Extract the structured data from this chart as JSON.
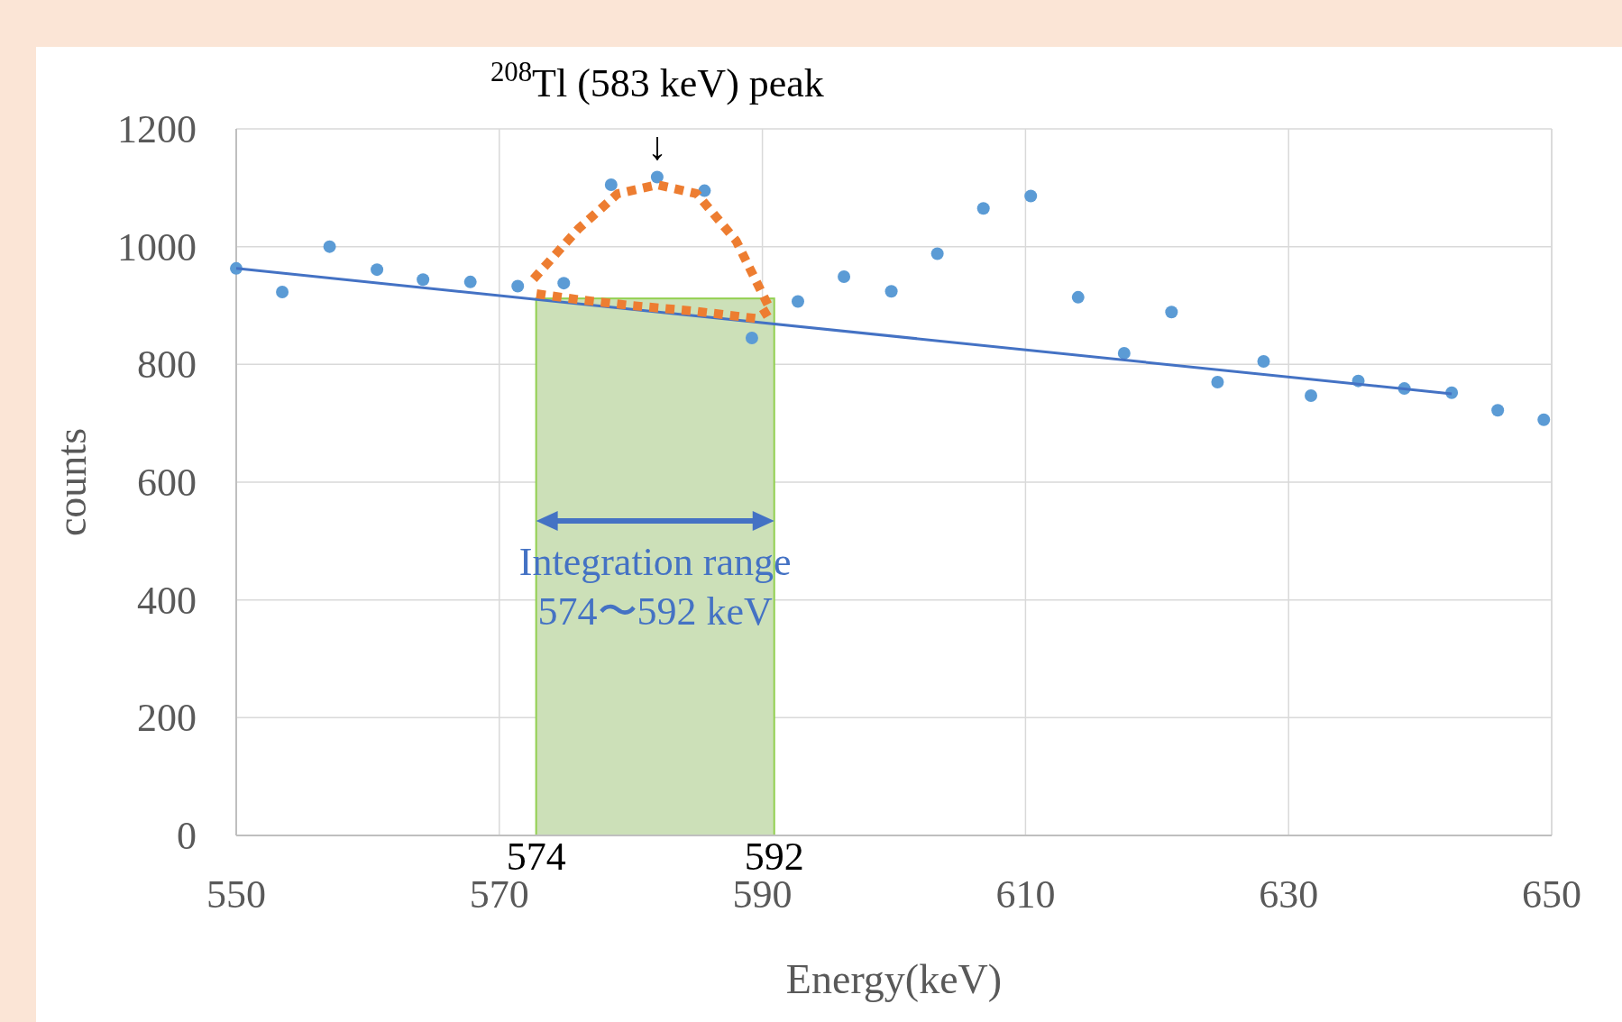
{
  "chart_data": {
    "type": "scatter",
    "xlabel": "Energy(keV)",
    "ylabel": "counts",
    "xlim": [
      550,
      650
    ],
    "xticks": [
      550,
      570,
      590,
      610,
      630,
      650
    ],
    "ylim": [
      0,
      1200
    ],
    "yticks": [
      0,
      200,
      400,
      600,
      800,
      1000,
      1200
    ],
    "grid": true,
    "series": [
      {
        "color": "#5b9bd5",
        "x": [
          550,
          553.5,
          557.1,
          560.7,
          564.2,
          567.8,
          571.4,
          574.9,
          578.5,
          582,
          585.6,
          589.2,
          592.7,
          596.2,
          599.8,
          603.3,
          606.8,
          610.4,
          614,
          617.5,
          621.1,
          624.6,
          628.1,
          631.7,
          635.3,
          638.8,
          642.4,
          645.9,
          649.4
        ],
        "values": [
          963,
          923,
          1000,
          961,
          944,
          940,
          933,
          938,
          1105,
          1118,
          1095,
          845,
          907,
          949,
          924,
          988,
          1065,
          1086,
          914,
          819,
          889,
          770,
          805,
          747,
          772,
          759,
          752,
          722,
          706
        ]
      },
      {
        "type": "line",
        "color": "#4472c4",
        "line_style": "solid",
        "x": [
          550,
          642.4
        ],
        "values": [
          963,
          750
        ]
      },
      {
        "type": "line",
        "color": "#ed7d31",
        "line_style": "dotted",
        "x": [
          572.6,
          576,
          579,
          582,
          585,
          588,
          590.6,
          589.5,
          585,
          580,
          576,
          572.8
        ],
        "values": [
          945,
          1030,
          1090,
          1105,
          1090,
          1010,
          893,
          878,
          890,
          900,
          910,
          920
        ]
      }
    ],
    "bands": [
      {
        "axis": "x",
        "from": 572.8,
        "to": 590.9,
        "color": "#cce0b8",
        "label": "Integration range\n574〜592 keV"
      }
    ],
    "annotations": [
      {
        "text": "$^{208}$Tl (583 keV) peak\n↓",
        "x": 582,
        "y": 1118
      },
      {
        "text": "574",
        "x": 572.8,
        "y": 0
      },
      {
        "text": "592",
        "x": 590.9,
        "y": 0
      }
    ]
  }
}
